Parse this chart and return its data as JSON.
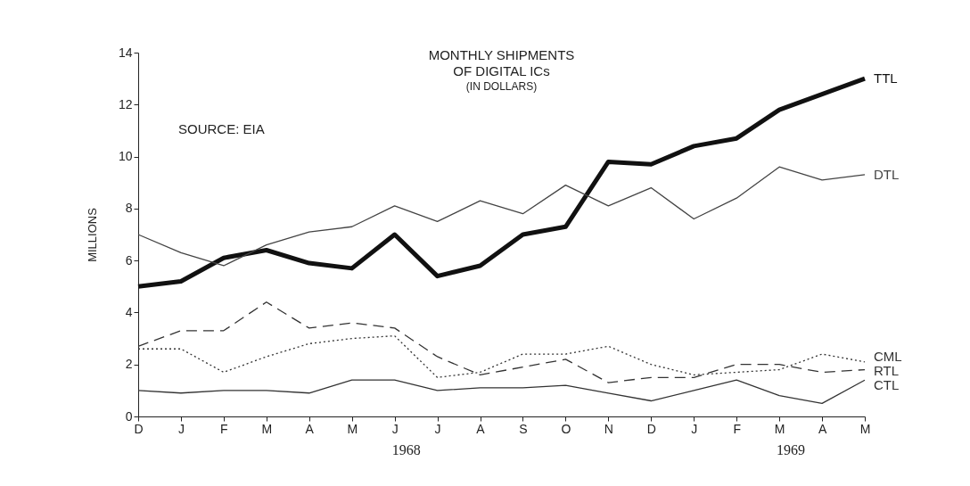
{
  "chart_data": {
    "type": "line",
    "title": "MONTHLY SHIPMENTS\nOF DIGITAL ICs",
    "subtitle": "(IN DOLLARS)",
    "ylabel": "MILLIONS",
    "annotations": [
      "SOURCE: EIA",
      "1968",
      "1969"
    ],
    "categories": [
      "D",
      "J",
      "F",
      "M",
      "A",
      "M",
      "J",
      "J",
      "A",
      "S",
      "O",
      "N",
      "D",
      "J",
      "F",
      "M",
      "A",
      "M"
    ],
    "ylim": [
      0,
      14
    ],
    "yticks": [
      0,
      2,
      4,
      6,
      8,
      10,
      12,
      14
    ],
    "grid": false,
    "legend": false,
    "marker": "none",
    "series": [
      {
        "name": "TTL",
        "color": "#111111",
        "line_style": "solid",
        "values": [
          5.0,
          5.2,
          6.1,
          6.4,
          5.9,
          5.7,
          7.0,
          5.4,
          5.8,
          7.0,
          7.3,
          9.8,
          9.7,
          10.4,
          10.7,
          11.8,
          12.4,
          13.0
        ]
      },
      {
        "name": "DTL",
        "color": "#444444",
        "line_style": "solid",
        "values": [
          7.0,
          6.3,
          5.8,
          6.6,
          7.1,
          7.3,
          8.1,
          7.5,
          8.3,
          7.8,
          8.9,
          8.1,
          8.8,
          7.6,
          8.4,
          9.6,
          9.1,
          9.3
        ]
      },
      {
        "name": "CML",
        "color": "#333333",
        "line_style": "dotted",
        "values": [
          2.6,
          2.6,
          1.7,
          2.3,
          2.8,
          3.0,
          3.1,
          1.5,
          1.7,
          2.4,
          2.4,
          2.7,
          2.0,
          1.6,
          1.7,
          1.8,
          2.4,
          2.1
        ]
      },
      {
        "name": "RTL",
        "color": "#333333",
        "line_style": "dashed",
        "values": [
          2.7,
          3.3,
          3.3,
          4.4,
          3.4,
          3.6,
          3.4,
          2.3,
          1.6,
          1.9,
          2.2,
          1.3,
          1.5,
          1.5,
          2.0,
          2.0,
          1.7,
          1.8
        ]
      },
      {
        "name": "CTL",
        "color": "#333333",
        "line_style": "solid",
        "values": [
          1.0,
          0.9,
          1.0,
          1.0,
          0.9,
          1.4,
          1.4,
          1.0,
          1.1,
          1.1,
          1.2,
          0.9,
          0.6,
          1.0,
          1.4,
          0.8,
          0.5,
          1.4
        ]
      }
    ]
  }
}
